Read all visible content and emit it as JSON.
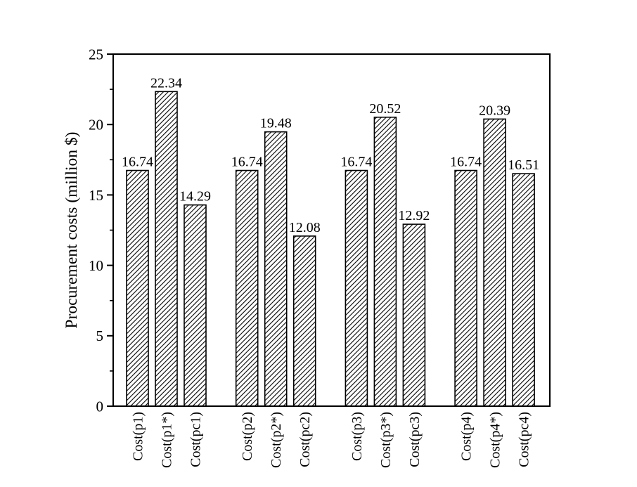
{
  "figure": {
    "background": "#ffffff",
    "ink_color": "#000000"
  },
  "chart_data": {
    "type": "bar",
    "title": "",
    "xlabel": "",
    "ylabel": "Procurement costs (million $)",
    "ylim": [
      0,
      25
    ],
    "yticks": [
      0,
      5,
      10,
      15,
      20,
      25
    ],
    "minor_ytick_step": 2.5,
    "grid": false,
    "legend": false,
    "bar_fill": "diagonal-hatch",
    "hatch_direction": "/",
    "group_size": 3,
    "categories": [
      "Cost(p1)",
      "Cost(p1*)",
      "Cost(pc1)",
      "Cost(p2)",
      "Cost(p2*)",
      "Cost(pc2)",
      "Cost(p3)",
      "Cost(p3*)",
      "Cost(pc3)",
      "Cost(p4)",
      "Cost(p4*)",
      "Cost(pc4)"
    ],
    "values": [
      16.74,
      22.34,
      14.29,
      16.74,
      19.48,
      12.08,
      16.74,
      20.52,
      12.92,
      16.74,
      20.39,
      16.51
    ],
    "value_labels": [
      "16.74",
      "22.34",
      "14.29",
      "16.74",
      "19.48",
      "12.08",
      "16.74",
      "20.52",
      "12.92",
      "16.74",
      "20.39",
      "16.51"
    ]
  }
}
